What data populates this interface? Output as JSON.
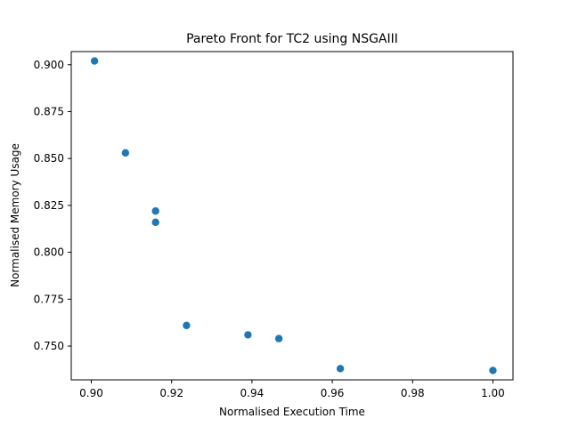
{
  "chart_data": {
    "type": "scatter",
    "title": "Pareto Front for TC2 using NSGAIII",
    "xlabel": "Normalised Execution Time",
    "ylabel": "Normalised Memory Usage",
    "xlim": [
      0.895,
      1.005
    ],
    "ylim": [
      0.732,
      0.907
    ],
    "grid": false,
    "x_ticks": [
      0.9,
      0.92,
      0.94,
      0.96,
      0.98,
      1.0
    ],
    "x_tick_labels": [
      "0.90",
      "0.92",
      "0.94",
      "0.96",
      "0.98",
      "1.00"
    ],
    "y_ticks": [
      0.75,
      0.775,
      0.8,
      0.825,
      0.85,
      0.875,
      0.9
    ],
    "y_tick_labels": [
      "0.750",
      "0.775",
      "0.800",
      "0.825",
      "0.850",
      "0.875",
      "0.900"
    ],
    "series": [
      {
        "color": "#1f77b4",
        "points": [
          [
            0.9008,
            0.902
          ],
          [
            0.9085,
            0.853
          ],
          [
            0.916,
            0.822
          ],
          [
            0.916,
            0.816
          ],
          [
            0.9237,
            0.761
          ],
          [
            0.939,
            0.756
          ],
          [
            0.9467,
            0.754
          ],
          [
            0.962,
            0.738
          ],
          [
            1.0,
            0.737
          ]
        ]
      }
    ]
  }
}
